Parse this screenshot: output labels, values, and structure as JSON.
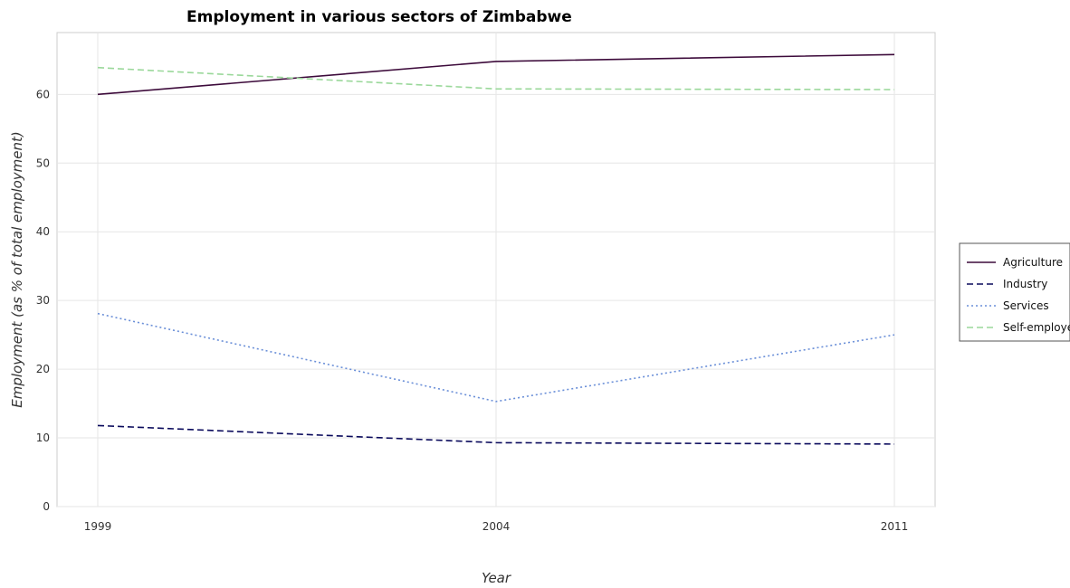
{
  "chart_data": {
    "type": "line",
    "title": "Employment in various sectors of Zimbabwe",
    "xlabel": "Year",
    "ylabel": "Employment (as % of total employment)",
    "x": [
      "1999",
      "2004",
      "2011"
    ],
    "ylim": [
      0,
      69
    ],
    "yticks": [
      0,
      10,
      20,
      30,
      40,
      50,
      60
    ],
    "grid": true,
    "legend_position": "right",
    "series": [
      {
        "name": "Agriculture",
        "color": "#3d0b3b",
        "dash": "solid",
        "values": [
          60.0,
          64.8,
          65.8
        ]
      },
      {
        "name": "Industry",
        "color": "#0a0a5c",
        "dash": "dashed",
        "values": [
          11.8,
          9.3,
          9.1
        ]
      },
      {
        "name": "Services",
        "color": "#6a8fd8",
        "dash": "dotted",
        "values": [
          28.1,
          15.3,
          25.0
        ]
      },
      {
        "name": "Self-employed",
        "color": "#9ad89a",
        "dash": "dashed",
        "values": [
          63.9,
          60.8,
          60.7
        ]
      }
    ]
  }
}
